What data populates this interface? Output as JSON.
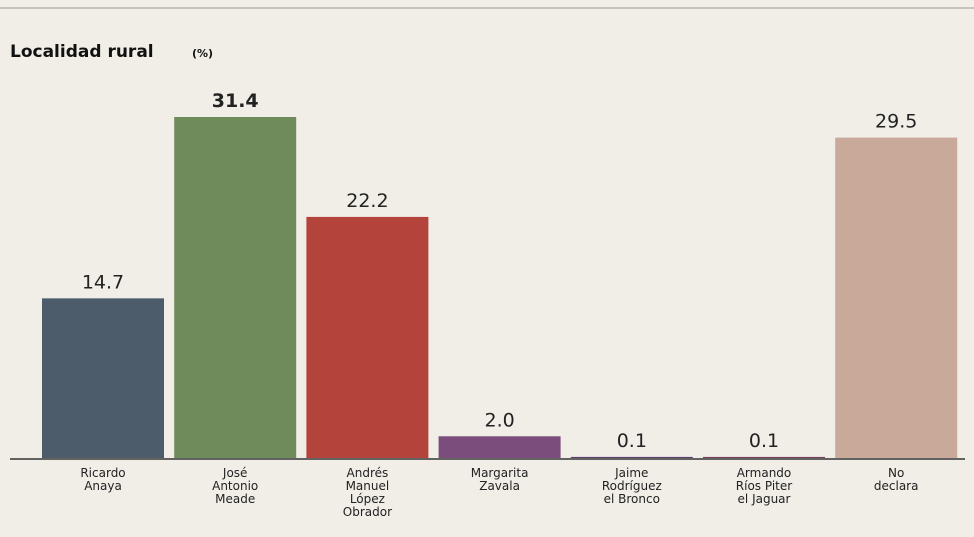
{
  "chart_data": {
    "type": "bar",
    "title": "Localidad rural",
    "unit": "(%)",
    "categories": [
      "Ricardo\nAnaya",
      "José\nAntonio\nMeade",
      "Andrés\nManuel\nLópez\nObrador",
      "Margarita\nZavala",
      "Jaime\nRodríguez\nel Bronco",
      "Armando\nRíos Piter\nel Jaguar",
      "No\ndeclara"
    ],
    "values": [
      14.7,
      31.4,
      22.2,
      2.0,
      0.1,
      0.1,
      29.5
    ],
    "value_labels": [
      "14.7",
      "31.4",
      "22.2",
      "2.0",
      "0.1",
      "0.1",
      "29.5"
    ],
    "colors": [
      "#4d5c6b",
      "#6f8b5c",
      "#b4443b",
      "#7b4d7c",
      "#5d3e6d",
      "#7b3f5e",
      "#c8a99a"
    ]
  }
}
